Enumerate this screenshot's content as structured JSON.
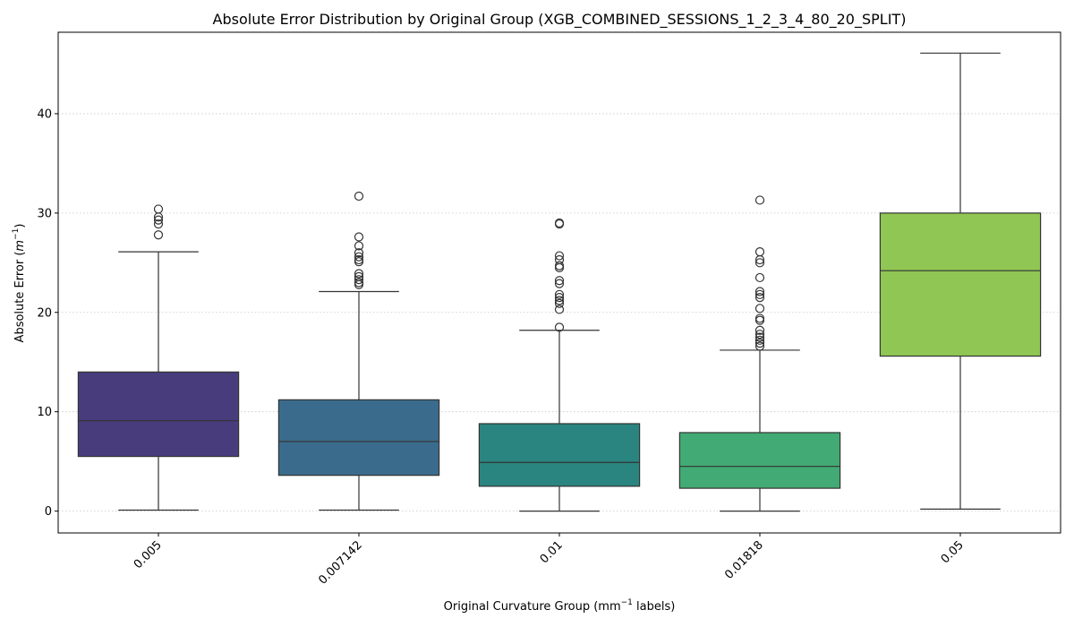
{
  "chart_data": {
    "type": "box",
    "title": "Absolute Error Distribution by Original Group (XGB_COMBINED_SESSIONS_1_2_3_4_80_20_SPLIT)",
    "xlabel_main": "Original Curvature Group (mm",
    "xlabel_sup": "−1",
    "xlabel_tail": " labels)",
    "ylabel_main": "Absolute Error (",
    "ylabel_var": "m",
    "ylabel_sup": "−1",
    "ylabel_tail": ")",
    "ylim": [
      -2.2,
      48.2
    ],
    "yticks": [
      0,
      10,
      20,
      30,
      40
    ],
    "grid": "y-dotted",
    "categories": [
      "0.005",
      "0.007142",
      "0.01",
      "0.01818",
      "0.05"
    ],
    "series": [
      {
        "category": "0.005",
        "color": "#483c7d",
        "whisker_low": 0.1,
        "q1": 5.5,
        "median": 9.1,
        "q3": 14.0,
        "whisker_high": 26.1,
        "outliers": [
          27.8,
          28.9,
          29.3,
          29.6,
          30.4
        ]
      },
      {
        "category": "0.007142",
        "color": "#3b6b8c",
        "whisker_low": 0.1,
        "q1": 3.6,
        "median": 7.0,
        "q3": 11.2,
        "whisker_high": 22.1,
        "outliers": [
          22.8,
          23.0,
          23.3,
          23.6,
          23.9,
          25.1,
          25.3,
          25.6,
          26.0,
          26.7,
          27.6,
          31.7
        ]
      },
      {
        "category": "0.01",
        "color": "#2a8580",
        "whisker_low": 0.0,
        "q1": 2.5,
        "median": 4.9,
        "q3": 8.8,
        "whisker_high": 18.2,
        "outliers": [
          18.5,
          20.3,
          20.9,
          21.2,
          21.5,
          21.8,
          22.9,
          23.2,
          24.5,
          24.7,
          25.3,
          25.7,
          28.9,
          29.0
        ]
      },
      {
        "category": "0.01818",
        "color": "#42aa74",
        "whisker_low": 0.0,
        "q1": 2.3,
        "median": 4.5,
        "q3": 7.9,
        "whisker_high": 16.2,
        "outliers": [
          16.6,
          16.9,
          17.2,
          17.5,
          17.8,
          18.2,
          19.2,
          19.4,
          20.4,
          21.5,
          21.8,
          22.1,
          23.5,
          25.0,
          25.3,
          26.1,
          31.3
        ]
      },
      {
        "category": "0.05",
        "color": "#8fc654",
        "whisker_low": 0.2,
        "q1": 15.6,
        "median": 24.2,
        "q3": 30.0,
        "whisker_high": 46.1,
        "outliers": []
      }
    ]
  }
}
